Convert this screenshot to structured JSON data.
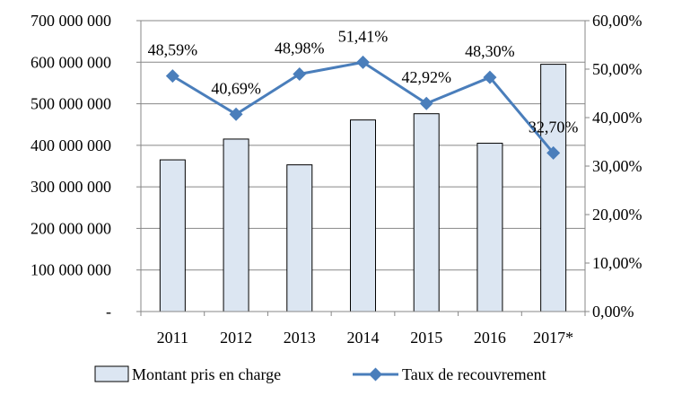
{
  "chart_data": {
    "type": "bar+line",
    "categories": [
      "2011",
      "2012",
      "2013",
      "2014",
      "2015",
      "2016",
      "2017*"
    ],
    "series": [
      {
        "name": "Montant pris en charge",
        "type": "bar",
        "axis": "left",
        "values": [
          365000000,
          415000000,
          353000000,
          461000000,
          476000000,
          405000000,
          595000000
        ],
        "color": "#dce6f2",
        "border_color": "#000000"
      },
      {
        "name": "Taux de recouvrement",
        "type": "line",
        "axis": "right",
        "values": [
          48.59,
          40.69,
          48.98,
          51.41,
          42.92,
          48.3,
          32.7
        ],
        "labels": [
          "48,59%",
          "40,69%",
          "48,98%",
          "51,41%",
          "42,92%",
          "48,30%",
          "32,70%"
        ],
        "color": "#4a7ebb",
        "marker": "diamond"
      }
    ],
    "y_left": {
      "ylim": [
        0,
        700000000
      ],
      "tick_labels": [
        "-",
        "100 000 000",
        "200 000 000",
        "300 000 000",
        "400 000 000",
        "500 000 000",
        "600 000 000",
        "700 000 000"
      ]
    },
    "y_right": {
      "ylim": [
        0,
        60
      ],
      "tick_labels": [
        "0,00%",
        "10,00%",
        "20,00%",
        "30,00%",
        "40,00%",
        "50,00%",
        "60,00%"
      ]
    },
    "grid": true,
    "legend": "bottom"
  }
}
